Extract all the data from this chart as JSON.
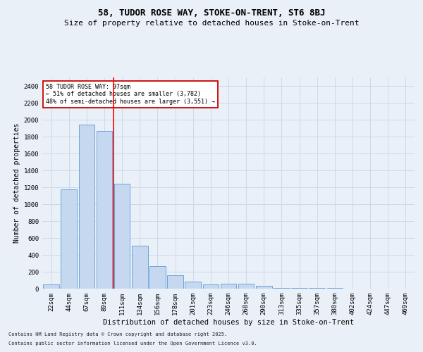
{
  "title": "58, TUDOR ROSE WAY, STOKE-ON-TRENT, ST6 8BJ",
  "subtitle": "Size of property relative to detached houses in Stoke-on-Trent",
  "xlabel": "Distribution of detached houses by size in Stoke-on-Trent",
  "ylabel": "Number of detached properties",
  "categories": [
    "22sqm",
    "44sqm",
    "67sqm",
    "89sqm",
    "111sqm",
    "134sqm",
    "156sqm",
    "178sqm",
    "201sqm",
    "223sqm",
    "246sqm",
    "268sqm",
    "290sqm",
    "313sqm",
    "335sqm",
    "357sqm",
    "380sqm",
    "402sqm",
    "424sqm",
    "447sqm",
    "469sqm"
  ],
  "values": [
    50,
    1175,
    1940,
    1870,
    1240,
    510,
    270,
    160,
    80,
    50,
    60,
    60,
    30,
    10,
    5,
    5,
    5,
    3,
    2,
    2,
    2
  ],
  "bar_color": "#c5d8f0",
  "bar_edge_color": "#5b9bd5",
  "grid_color": "#d0d8e8",
  "bg_color": "#eaf0f8",
  "red_line_index": 3.5,
  "annotation_text": "58 TUDOR ROSE WAY: 97sqm\n← 51% of detached houses are smaller (3,782)\n48% of semi-detached houses are larger (3,551) →",
  "annotation_box_color": "#ffffff",
  "annotation_border_color": "#cc0000",
  "footnote1": "Contains HM Land Registry data © Crown copyright and database right 2025.",
  "footnote2": "Contains public sector information licensed under the Open Government Licence v3.0.",
  "ylim": [
    0,
    2500
  ],
  "yticks": [
    0,
    200,
    400,
    600,
    800,
    1000,
    1200,
    1400,
    1600,
    1800,
    2000,
    2200,
    2400
  ],
  "title_fontsize": 9,
  "subtitle_fontsize": 8,
  "xlabel_fontsize": 7.5,
  "ylabel_fontsize": 7,
  "tick_fontsize": 6.5,
  "annot_fontsize": 6,
  "footnote_fontsize": 5
}
